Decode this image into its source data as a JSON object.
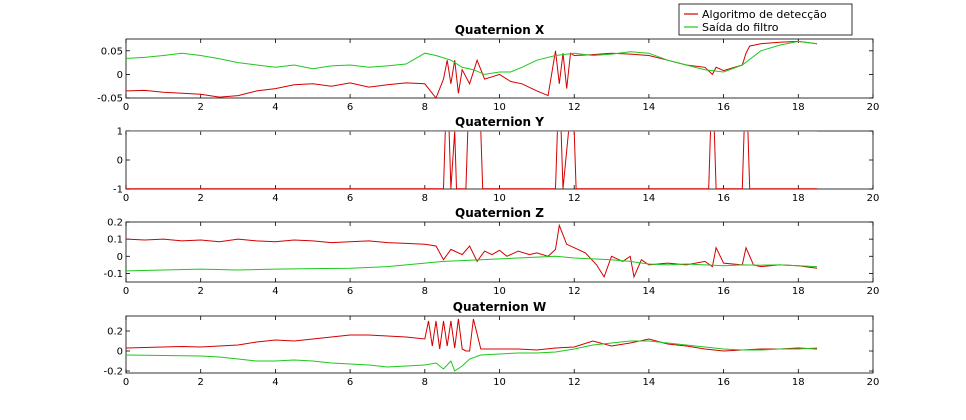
{
  "chart_data": [
    {
      "type": "line",
      "title": "Quaternion X",
      "xlim": [
        0,
        20
      ],
      "ylim": [
        -0.05,
        0.075
      ],
      "xticks": [
        0,
        2,
        4,
        6,
        8,
        10,
        12,
        14,
        16,
        18,
        20
      ],
      "yticks": [
        -0.05,
        0,
        0.05
      ],
      "ytick_labels": [
        "-0.05",
        "0",
        "0.05"
      ],
      "series": [
        {
          "name": "Algoritmo de detecção",
          "color": "#d40000",
          "x": [
            0,
            0.5,
            1,
            1.5,
            2,
            2.5,
            3,
            3.5,
            4,
            4.5,
            5,
            5.5,
            6,
            6.5,
            7,
            7.5,
            8,
            8.3,
            8.5,
            8.6,
            8.7,
            8.8,
            8.9,
            9,
            9.2,
            9.4,
            9.6,
            9.8,
            10,
            10.3,
            10.6,
            11,
            11.3,
            11.5,
            11.6,
            11.7,
            11.8,
            11.9,
            12,
            12.5,
            13,
            13.5,
            14,
            14.5,
            15,
            15.5,
            15.7,
            15.8,
            16,
            16.5,
            16.6,
            16.7,
            17,
            17.5,
            18,
            18.5
          ],
          "y": [
            -0.035,
            -0.034,
            -0.038,
            -0.04,
            -0.042,
            -0.048,
            -0.045,
            -0.035,
            -0.03,
            -0.022,
            -0.02,
            -0.025,
            -0.018,
            -0.027,
            -0.022,
            -0.018,
            -0.02,
            -0.05,
            -0.01,
            0.03,
            -0.02,
            0.03,
            -0.04,
            0.01,
            -0.02,
            0.03,
            -0.01,
            -0.005,
            0.0,
            -0.015,
            -0.02,
            -0.035,
            -0.045,
            0.05,
            -0.02,
            0.045,
            -0.03,
            0.045,
            0.04,
            0.042,
            0.045,
            0.043,
            0.04,
            0.03,
            0.02,
            0.015,
            0.0,
            0.015,
            0.008,
            0.02,
            0.045,
            0.06,
            0.065,
            0.068,
            0.07,
            0.065
          ]
        },
        {
          "name": "Saída do filtro",
          "color": "#1ec81e",
          "x": [
            0,
            0.5,
            1,
            1.5,
            2,
            2.5,
            3,
            3.5,
            4,
            4.5,
            5,
            5.5,
            6,
            6.5,
            7,
            7.5,
            8,
            8.3,
            8.5,
            8.7,
            9,
            9.3,
            9.6,
            10,
            10.3,
            10.6,
            11,
            11.5,
            12,
            12.5,
            13,
            13.5,
            14,
            14.5,
            15,
            15.5,
            16,
            16.5,
            17,
            17.5,
            18,
            18.5
          ],
          "y": [
            0.034,
            0.036,
            0.04,
            0.045,
            0.04,
            0.033,
            0.025,
            0.02,
            0.015,
            0.02,
            0.012,
            0.018,
            0.02,
            0.015,
            0.018,
            0.022,
            0.045,
            0.04,
            0.035,
            0.03,
            0.015,
            0.01,
            0.0,
            0.005,
            0.005,
            0.015,
            0.03,
            0.04,
            0.045,
            0.04,
            0.043,
            0.048,
            0.045,
            0.03,
            0.02,
            0.01,
            0.005,
            0.02,
            0.05,
            0.062,
            0.07,
            0.065
          ]
        }
      ]
    },
    {
      "type": "line",
      "title": "Quaternion Y",
      "xlim": [
        0,
        20
      ],
      "ylim": [
        -1,
        1
      ],
      "xticks": [
        0,
        2,
        4,
        6,
        8,
        10,
        12,
        14,
        16,
        18,
        20
      ],
      "yticks": [
        -1,
        0,
        1
      ],
      "ytick_labels": [
        "-1",
        "0",
        "1"
      ],
      "series": [
        {
          "name": "Algoritmo de detecção",
          "color": "#d40000",
          "x": [
            0,
            8.5,
            8.55,
            8.65,
            8.7,
            8.8,
            8.85,
            9.1,
            9.15,
            9.25,
            9.3,
            9.5,
            9.55,
            11.5,
            11.55,
            11.65,
            11.7,
            11.85,
            11.9,
            12.0,
            12.05,
            15.6,
            15.65,
            15.75,
            15.8,
            16.5,
            16.55,
            16.65,
            16.7,
            18.5
          ],
          "y": [
            -0.99,
            -0.99,
            1,
            1,
            -0.99,
            1,
            -0.99,
            -0.99,
            1,
            1,
            1,
            1,
            -0.99,
            -0.99,
            1,
            1,
            -0.99,
            1,
            1,
            1,
            -0.99,
            -0.99,
            1,
            1,
            -0.99,
            -0.99,
            1,
            1,
            -0.99,
            -0.99
          ]
        },
        {
          "name": "Saída do filtro",
          "color": "#1ec81e",
          "x": [
            0,
            18.5
          ],
          "y": [
            0.995,
            0.995
          ]
        }
      ]
    },
    {
      "type": "line",
      "title": "Quaternion Z",
      "xlim": [
        0,
        20
      ],
      "ylim": [
        -0.15,
        0.2
      ],
      "xticks": [
        0,
        2,
        4,
        6,
        8,
        10,
        12,
        14,
        16,
        18,
        20
      ],
      "yticks": [
        -0.1,
        0,
        0.1,
        0.2
      ],
      "ytick_labels": [
        "-0.1",
        "0",
        "0.1",
        "0.2"
      ],
      "series": [
        {
          "name": "Algoritmo de detecção",
          "color": "#d40000",
          "x": [
            0,
            0.5,
            1,
            1.5,
            2,
            2.5,
            3,
            3.5,
            4,
            4.5,
            5,
            5.5,
            6,
            6.5,
            7,
            7.5,
            8,
            8.3,
            8.5,
            8.7,
            9,
            9.2,
            9.4,
            9.6,
            9.8,
            10,
            10.2,
            10.5,
            10.8,
            11,
            11.3,
            11.5,
            11.6,
            11.8,
            12,
            12.3,
            12.6,
            12.8,
            13,
            13.3,
            13.5,
            13.6,
            13.8,
            14,
            14.5,
            15,
            15.5,
            15.7,
            15.8,
            16,
            16.5,
            16.6,
            16.8,
            17,
            17.5,
            18,
            18.5
          ],
          "y": [
            0.1,
            0.095,
            0.1,
            0.09,
            0.095,
            0.085,
            0.1,
            0.09,
            0.085,
            0.095,
            0.09,
            0.08,
            0.085,
            0.09,
            0.08,
            0.075,
            0.07,
            0.06,
            -0.02,
            0.04,
            0.01,
            0.06,
            -0.03,
            0.03,
            0.01,
            0.035,
            0.0,
            0.03,
            0.01,
            0.02,
            0.0,
            0.04,
            0.18,
            0.07,
            0.05,
            0.02,
            -0.05,
            -0.12,
            0.0,
            -0.03,
            0.0,
            -0.12,
            -0.02,
            -0.05,
            -0.04,
            -0.05,
            -0.03,
            -0.06,
            0.05,
            -0.04,
            -0.05,
            0.05,
            -0.05,
            -0.06,
            -0.05,
            -0.055,
            -0.07
          ]
        },
        {
          "name": "Saída do filtro",
          "color": "#1ec81e",
          "x": [
            0,
            1,
            2,
            3,
            4,
            5,
            6,
            7,
            7.5,
            8,
            8.5,
            9,
            9.5,
            10,
            10.5,
            11,
            11.5,
            12,
            12.5,
            13,
            13.5,
            14,
            14.5,
            15,
            15.5,
            16,
            16.5,
            17,
            17.5,
            18,
            18.5
          ],
          "y": [
            -0.085,
            -0.08,
            -0.075,
            -0.08,
            -0.075,
            -0.072,
            -0.07,
            -0.06,
            -0.05,
            -0.04,
            -0.03,
            -0.025,
            -0.02,
            -0.015,
            -0.01,
            -0.005,
            0.0,
            -0.01,
            -0.015,
            -0.02,
            -0.03,
            -0.045,
            -0.05,
            -0.045,
            -0.05,
            -0.055,
            -0.05,
            -0.052,
            -0.05,
            -0.055,
            -0.06
          ]
        }
      ]
    },
    {
      "type": "line",
      "title": "Quaternion W",
      "xlim": [
        0,
        20
      ],
      "ylim": [
        -0.22,
        0.35
      ],
      "xticks": [
        0,
        2,
        4,
        6,
        8,
        10,
        12,
        14,
        16,
        18,
        20
      ],
      "yticks": [
        -0.2,
        0,
        0.2
      ],
      "ytick_labels": [
        "-0.2",
        "0",
        "0.2"
      ],
      "series": [
        {
          "name": "Algoritmo de detecção",
          "color": "#d40000",
          "x": [
            0,
            0.5,
            1,
            1.5,
            2,
            2.5,
            3,
            3.5,
            4,
            4.5,
            5,
            5.5,
            6,
            6.5,
            7,
            7.5,
            8,
            8.1,
            8.2,
            8.3,
            8.4,
            8.5,
            8.6,
            8.7,
            8.8,
            8.9,
            9.0,
            9.1,
            9.2,
            9.3,
            9.5,
            10,
            10.5,
            11,
            11.5,
            12,
            12.5,
            13,
            13.5,
            14,
            14.5,
            15,
            15.5,
            16,
            16.5,
            17,
            17.5,
            18,
            18.5
          ],
          "y": [
            0.03,
            0.035,
            0.04,
            0.045,
            0.04,
            0.05,
            0.06,
            0.09,
            0.11,
            0.1,
            0.12,
            0.14,
            0.16,
            0.16,
            0.15,
            0.14,
            0.12,
            0.3,
            0.05,
            0.3,
            0.02,
            0.3,
            0.05,
            0.3,
            0.03,
            0.32,
            0.02,
            0.0,
            0.0,
            0.32,
            0.02,
            0.02,
            0.02,
            0.01,
            0.03,
            0.04,
            0.1,
            0.05,
            0.08,
            0.12,
            0.07,
            0.05,
            0.02,
            0.0,
            0.01,
            0.02,
            0.02,
            0.03,
            0.02
          ]
        },
        {
          "name": "Saída do filtro",
          "color": "#1ec81e",
          "x": [
            0,
            1,
            2,
            2.5,
            3,
            3.5,
            4,
            4.5,
            5,
            5.5,
            6,
            6.5,
            7,
            7.5,
            8,
            8.3,
            8.5,
            8.7,
            8.8,
            9,
            9.2,
            9.5,
            10,
            10.5,
            11,
            11.5,
            12,
            12.5,
            13,
            13.5,
            14,
            14.5,
            15,
            15.5,
            16,
            16.5,
            17,
            17.5,
            18,
            18.5
          ],
          "y": [
            -0.04,
            -0.045,
            -0.05,
            -0.06,
            -0.08,
            -0.1,
            -0.1,
            -0.09,
            -0.1,
            -0.12,
            -0.13,
            -0.14,
            -0.16,
            -0.15,
            -0.14,
            -0.12,
            -0.18,
            -0.1,
            -0.2,
            -0.15,
            -0.08,
            -0.04,
            -0.03,
            -0.02,
            -0.02,
            -0.01,
            0.02,
            0.06,
            0.08,
            0.1,
            0.1,
            0.08,
            0.06,
            0.04,
            0.02,
            0.01,
            0.01,
            0.02,
            0.02,
            0.03
          ]
        }
      ]
    }
  ],
  "legend": {
    "items": [
      {
        "label": "Algoritmo de detecção",
        "color": "#d40000"
      },
      {
        "label": "Saída do filtro",
        "color": "#1ec81e"
      }
    ]
  }
}
